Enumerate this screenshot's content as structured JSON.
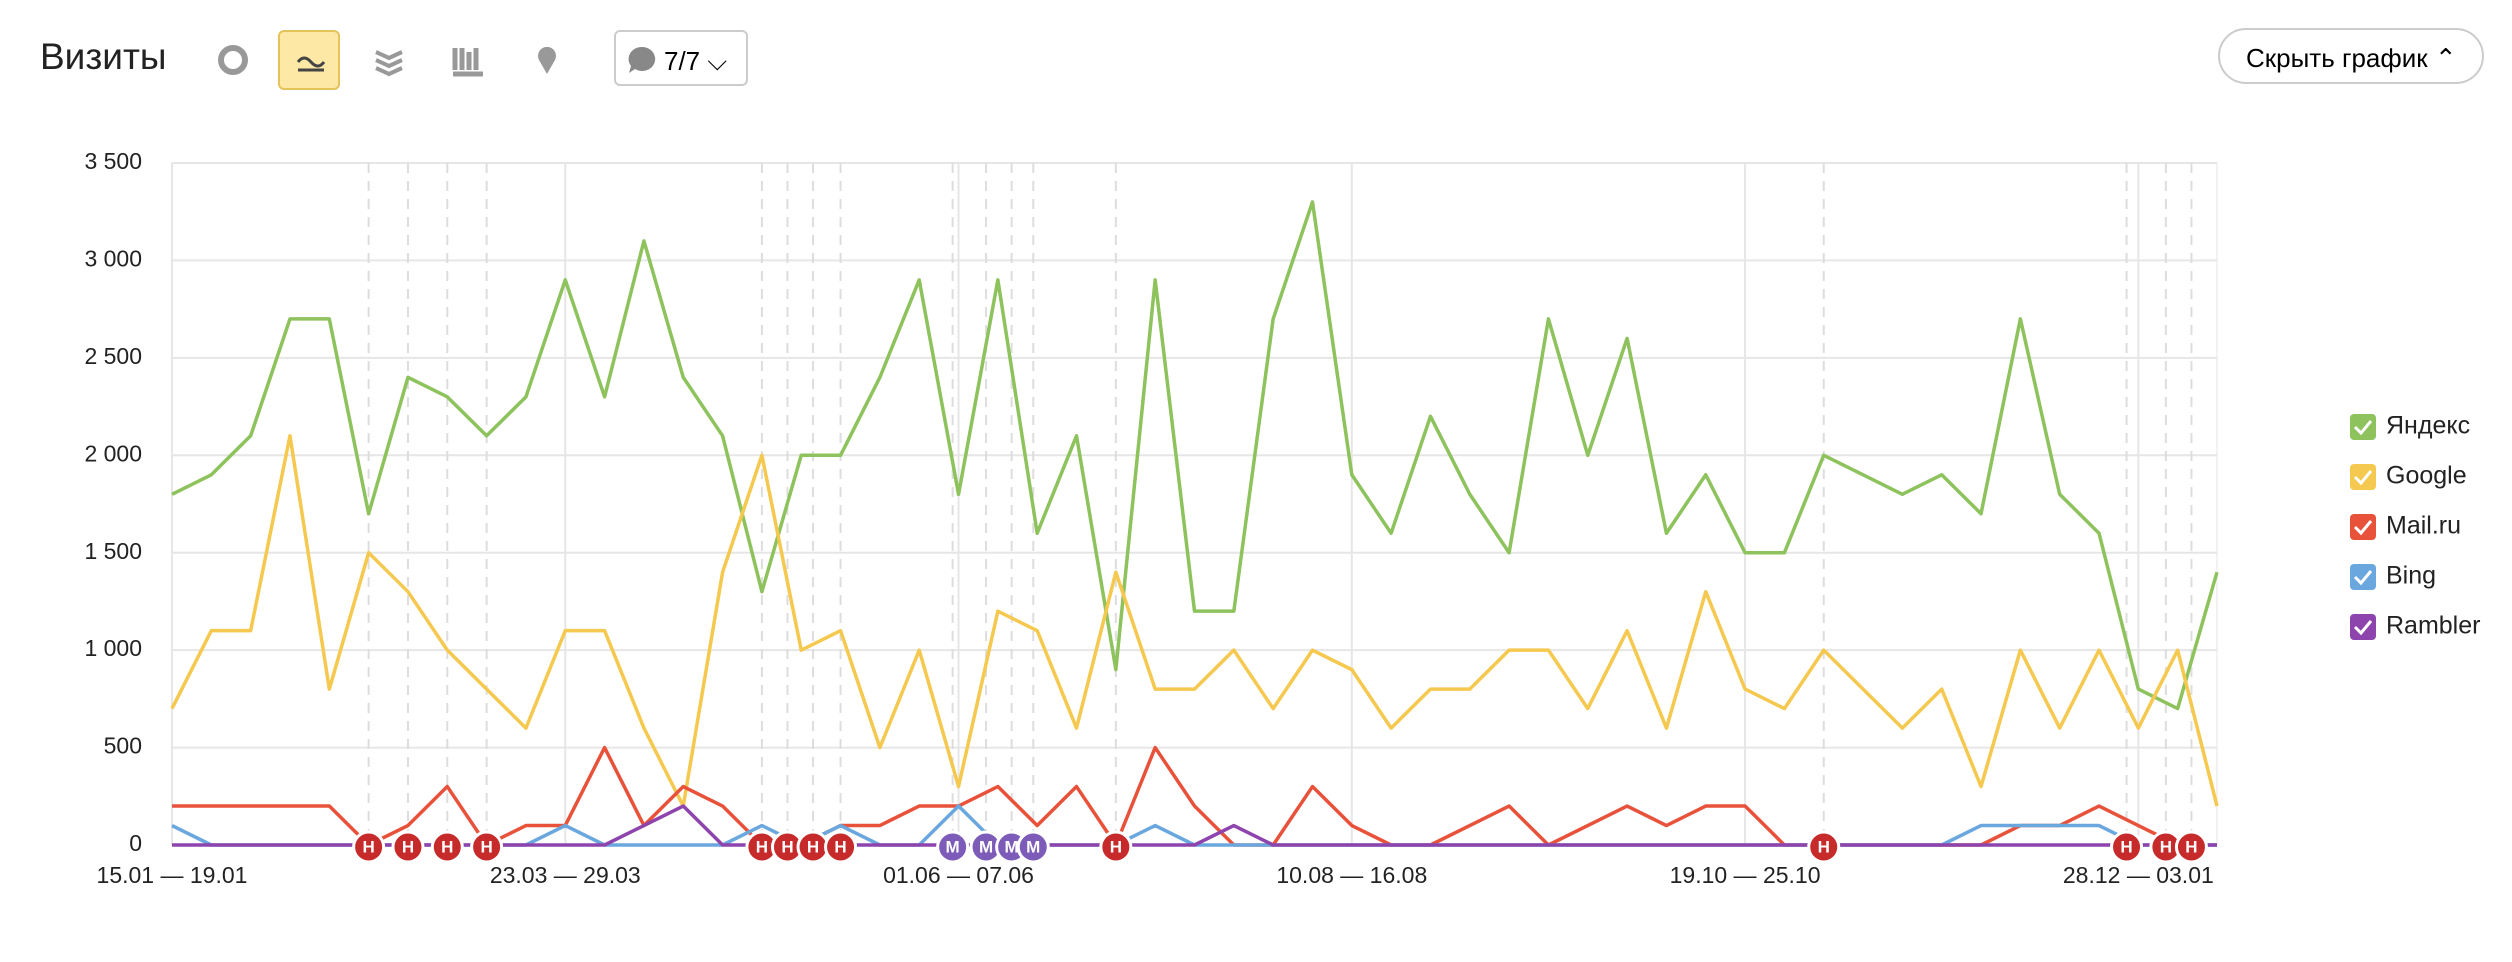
{
  "header": {
    "title": "Визиты",
    "filter": "7/7",
    "hide_button": "Скрыть график"
  },
  "chart_data": {
    "type": "line",
    "categories": [
      "15.01 — 19.01",
      null,
      null,
      null,
      null,
      null,
      null,
      null,
      null,
      null,
      "23.03 — 29.03",
      null,
      null,
      null,
      null,
      null,
      null,
      null,
      null,
      null,
      "01.06 — 07.06",
      null,
      null,
      null,
      null,
      null,
      null,
      null,
      null,
      null,
      "10.08 — 16.08",
      null,
      null,
      null,
      null,
      null,
      null,
      null,
      null,
      null,
      "19.10 — 25.10",
      null,
      null,
      null,
      null,
      null,
      null,
      null,
      null,
      null,
      "28.12 — 03.01",
      null,
      null
    ],
    "series": [
      {
        "name": "Яндекс",
        "color": "#8dc25c",
        "values": [
          1800,
          1900,
          2100,
          2700,
          2700,
          1700,
          2400,
          2300,
          2100,
          2300,
          2900,
          2300,
          3100,
          2400,
          2100,
          1300,
          2000,
          2000,
          2400,
          2900,
          1800,
          2900,
          1600,
          2100,
          900,
          2900,
          1200,
          1200,
          2700,
          3300,
          1900,
          1600,
          2200,
          1800,
          1500,
          2700,
          2000,
          2600,
          1600,
          1900,
          1500,
          1500,
          2000,
          1900,
          1800,
          1900,
          1700,
          2700,
          1800,
          1600,
          800,
          700,
          1400
        ]
      },
      {
        "name": "Google",
        "color": "#f5c84f",
        "values": [
          700,
          1100,
          1100,
          2100,
          800,
          1500,
          1300,
          1000,
          800,
          600,
          1100,
          1100,
          600,
          200,
          1400,
          2000,
          1000,
          1100,
          500,
          1000,
          300,
          1200,
          1100,
          600,
          1400,
          800,
          800,
          1000,
          700,
          1000,
          900,
          600,
          800,
          800,
          1000,
          1000,
          700,
          1100,
          600,
          1300,
          800,
          700,
          1000,
          800,
          600,
          800,
          300,
          1000,
          600,
          1000,
          600,
          1000,
          200
        ]
      },
      {
        "name": "Mail.ru",
        "color": "#e8523a",
        "values": [
          200,
          200,
          200,
          200,
          200,
          0,
          100,
          300,
          0,
          100,
          100,
          500,
          100,
          300,
          200,
          0,
          0,
          100,
          100,
          200,
          200,
          300,
          100,
          300,
          0,
          500,
          200,
          0,
          0,
          300,
          100,
          0,
          0,
          100,
          200,
          0,
          100,
          200,
          100,
          200,
          200,
          0,
          0,
          0,
          0,
          0,
          0,
          100,
          100,
          200,
          100,
          0,
          0
        ]
      },
      {
        "name": "Bing",
        "color": "#6aa7de",
        "values": [
          100,
          0,
          0,
          0,
          0,
          0,
          0,
          0,
          0,
          0,
          100,
          0,
          0,
          0,
          0,
          100,
          0,
          100,
          0,
          0,
          200,
          0,
          0,
          0,
          0,
          100,
          0,
          0,
          0,
          0,
          0,
          0,
          0,
          0,
          0,
          0,
          0,
          0,
          0,
          0,
          0,
          0,
          0,
          0,
          0,
          0,
          100,
          100,
          100,
          100,
          0,
          0,
          0
        ]
      },
      {
        "name": "Rambler",
        "color": "#8e44ad",
        "values": [
          0,
          0,
          0,
          0,
          0,
          0,
          0,
          0,
          0,
          0,
          0,
          0,
          100,
          200,
          0,
          0,
          0,
          0,
          0,
          0,
          0,
          0,
          0,
          0,
          0,
          0,
          0,
          100,
          0,
          0,
          0,
          0,
          0,
          0,
          0,
          0,
          0,
          0,
          0,
          0,
          0,
          0,
          0,
          0,
          0,
          0,
          0,
          0,
          0,
          0,
          0,
          0,
          0
        ]
      }
    ],
    "ylim": [
      0,
      3500
    ],
    "yticks": [
      0,
      {
        "value": 500,
        "label": "500"
      },
      {
        "value": 1000,
        "label": "1 000"
      },
      {
        "value": 1500,
        "label": "1 500"
      },
      {
        "value": 2000,
        "label": "2 000"
      },
      {
        "value": 2500,
        "label": "2 500"
      },
      {
        "value": 3000,
        "label": "3 000"
      },
      {
        "value": 3500,
        "label": "3 500"
      }
    ],
    "grid": true,
    "annotations": [
      {
        "at": 5,
        "label": "Н"
      },
      {
        "at": 6,
        "label": "Н"
      },
      {
        "at": 7,
        "label": "Н"
      },
      {
        "at": 8,
        "label": "Н"
      },
      {
        "at": 15,
        "label": "Н"
      },
      {
        "at": 15.65,
        "label": "Н"
      },
      {
        "at": 16.3,
        "label": "Н"
      },
      {
        "at": 17,
        "label": "Н"
      },
      {
        "at": 19.85,
        "label": "М"
      },
      {
        "at": 20.7,
        "label": "М"
      },
      {
        "at": 21.35,
        "label": "М"
      },
      {
        "at": 21.9,
        "label": "М"
      },
      {
        "at": 24,
        "label": "Н"
      },
      {
        "at": 42,
        "label": "Н"
      },
      {
        "at": 49.7,
        "label": "Н"
      },
      {
        "at": 50.7,
        "label": "Н"
      },
      {
        "at": 51.35,
        "label": "Н"
      }
    ]
  }
}
